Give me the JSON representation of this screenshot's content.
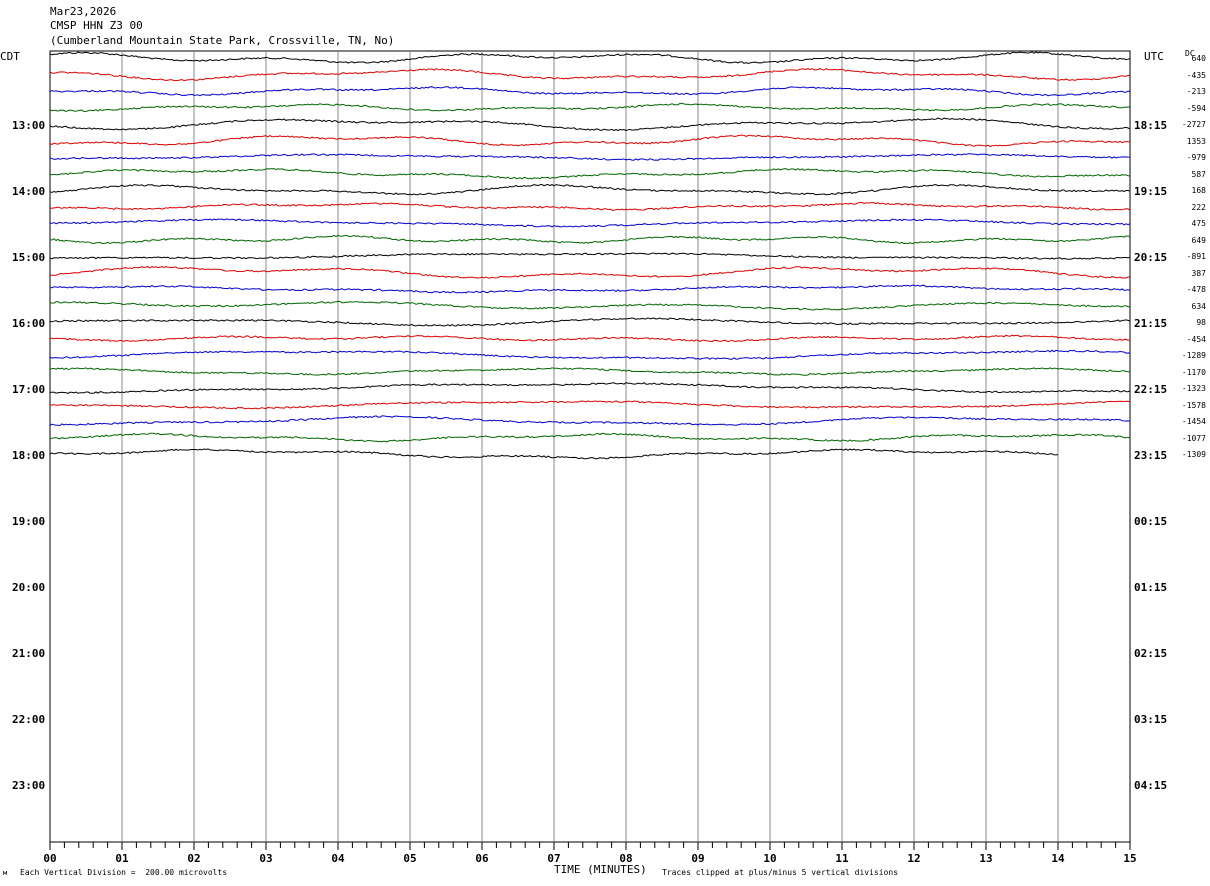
{
  "header": {
    "date": "Mar23,2026",
    "station": "CMSP HHN Z3 00",
    "location": "(Cumberland Mountain State Park, Crossville, TN, No)"
  },
  "left_tz_label": "CDT",
  "right_tz_label": "UTC",
  "dc_label": "DC",
  "footer": {
    "x_axis_label": "TIME (MINUTES)",
    "scale_note": "Each Vertical Division =  200.00 microvolts",
    "clip_note": "Traces clipped at plus/minus 5 vertical divisions"
  },
  "colors": {
    "trace_cycle": [
      "#000000",
      "#dd0000",
      "#0000cc",
      "#006600"
    ],
    "grid": "#888888"
  },
  "chart_data": {
    "type": "line",
    "title": "CMSP HHN Z3 00",
    "xlabel": "TIME (MINUTES)",
    "xlim": [
      0,
      15
    ],
    "x_ticks": [
      "00",
      "01",
      "02",
      "03",
      "04",
      "05",
      "06",
      "07",
      "08",
      "09",
      "10",
      "11",
      "12",
      "13",
      "14",
      "15"
    ],
    "left_hour_labels": [
      "13:00",
      "14:00",
      "15:00",
      "16:00",
      "17:00",
      "18:00",
      "19:00",
      "20:00",
      "21:00",
      "22:00",
      "23:00"
    ],
    "right_hour_labels": [
      "18:15",
      "19:15",
      "20:15",
      "21:15",
      "22:15",
      "23:15",
      "00:15",
      "01:15",
      "02:15",
      "03:15",
      "04:15"
    ],
    "trace_count": 25,
    "dc_offsets": [
      "640",
      "-435",
      "-213",
      "-594",
      "-2727",
      "1353",
      "-979",
      "587",
      "168",
      "222",
      "475",
      "649",
      "-891",
      "387",
      "-478",
      "634",
      "98",
      "-454",
      "-1289",
      "-1170",
      "-1323",
      "-1578",
      "-1454",
      "-1077",
      "-1309"
    ],
    "last_trace_end_minute": 14,
    "grid": true
  }
}
